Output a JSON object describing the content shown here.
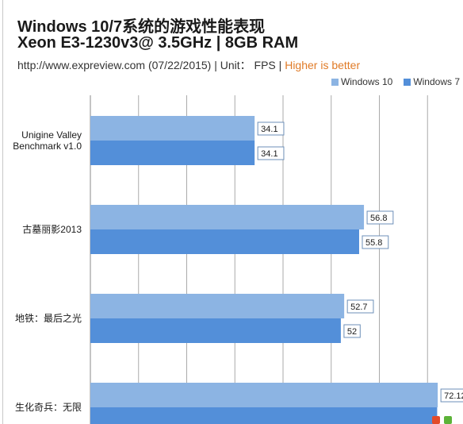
{
  "header": {
    "title_line1": "Windows 10/7系统的游戏性能表现",
    "title_line2": "Xeon E3-1230v3@ 3.5GHz | 8GB RAM",
    "source": "http://www.expreview.com (07/22/2015) | Unit： FPS | ",
    "higher_is_better": "Higher is better"
  },
  "colors": {
    "series1": "#8cb4e3",
    "series2": "#538fd9",
    "highlight": "#e07b27",
    "grid": "#aaaaaa"
  },
  "chart_data": {
    "type": "bar",
    "orientation": "horizontal",
    "title": "Windows 10/7系统的游戏性能表现",
    "subtitle": "Xeon E3-1230v3@ 3.5GHz | 8GB RAM",
    "categories": [
      "Unigine Valley\nBenchmark v1.0",
      "古墓丽影2013",
      "地铁：最后之光",
      "生化奇兵：无限"
    ],
    "series": [
      {
        "name": "Windows 10",
        "values": [
          34.1,
          56.8,
          52.7,
          72.12
        ]
      },
      {
        "name": "Windows 7",
        "values": [
          34.1,
          55.8,
          52,
          72.0
        ]
      }
    ],
    "data_labels": [
      [
        "34.1",
        "56.8",
        "52.7",
        "72.12"
      ],
      [
        "34.1",
        "55.8",
        "52",
        ""
      ]
    ],
    "xlim": [
      0,
      80
    ],
    "grid": true,
    "legend_position": "top-right"
  }
}
